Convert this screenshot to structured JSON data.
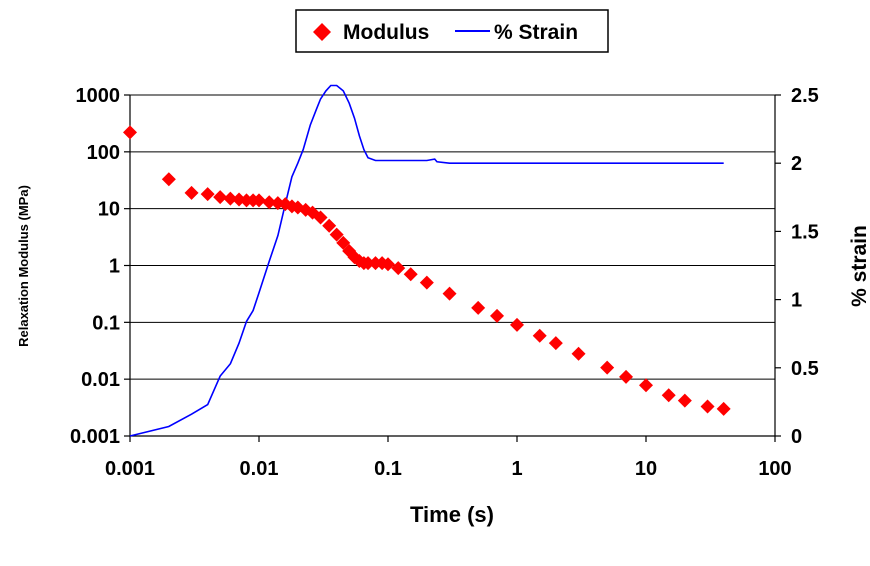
{
  "chart_data": {
    "type": "line",
    "xlabel": "Time (s)",
    "ylabel": "Relaxation Modulus (MPa)",
    "y2label": "% strain",
    "x_scale": "log",
    "xlim": [
      0.001,
      100
    ],
    "ylim": [
      0.001,
      1000
    ],
    "y_scale": "log",
    "y2lim": [
      0,
      2.5
    ],
    "x_ticks": [
      "0.001",
      "0.01",
      "0.1",
      "1",
      "10",
      "100"
    ],
    "y_ticks": [
      "0.001",
      "0.01",
      "0.1",
      "1",
      "10",
      "100",
      "1000"
    ],
    "y2_ticks": [
      "0",
      "0.5",
      "1",
      "1.5",
      "2",
      "2.5"
    ],
    "grid": "horizontal",
    "legend_position": "top-center",
    "series": [
      {
        "name": "Modulus",
        "marker": "diamond",
        "color": "#FF0000",
        "axis": "left",
        "x": [
          0.001,
          0.002,
          0.003,
          0.004,
          0.005,
          0.006,
          0.007,
          0.008,
          0.009,
          0.01,
          0.012,
          0.014,
          0.016,
          0.018,
          0.02,
          0.023,
          0.026,
          0.03,
          0.035,
          0.04,
          0.045,
          0.05,
          0.055,
          0.06,
          0.065,
          0.07,
          0.08,
          0.09,
          0.1,
          0.12,
          0.15,
          0.2,
          0.3,
          0.5,
          0.7,
          1,
          1.5,
          2,
          3,
          5,
          7,
          10,
          15,
          20,
          30,
          40
        ],
        "y": [
          220,
          33,
          19,
          18,
          16,
          15,
          14.5,
          14,
          14,
          14,
          13,
          12.5,
          12,
          11,
          10.5,
          9.5,
          8.5,
          7,
          5,
          3.5,
          2.5,
          1.8,
          1.4,
          1.2,
          1.1,
          1.1,
          1.1,
          1.1,
          1.05,
          0.9,
          0.7,
          0.5,
          0.32,
          0.18,
          0.13,
          0.09,
          0.058,
          0.043,
          0.028,
          0.016,
          0.011,
          0.0078,
          0.0052,
          0.0042,
          0.0033,
          0.003
        ]
      },
      {
        "name": "% Strain",
        "marker": "none",
        "color": "#0000FF",
        "axis": "right",
        "x": [
          0.001,
          0.002,
          0.003,
          0.004,
          0.005,
          0.006,
          0.007,
          0.008,
          0.009,
          0.01,
          0.012,
          0.014,
          0.016,
          0.018,
          0.02,
          0.022,
          0.025,
          0.028,
          0.03,
          0.033,
          0.036,
          0.04,
          0.045,
          0.05,
          0.055,
          0.06,
          0.065,
          0.07,
          0.08,
          0.1,
          0.2,
          0.23,
          0.24,
          0.3,
          1,
          5,
          10,
          20,
          40
        ],
        "y": [
          0,
          0.07,
          0.16,
          0.23,
          0.44,
          0.53,
          0.68,
          0.84,
          0.92,
          1.05,
          1.28,
          1.47,
          1.7,
          1.9,
          2.0,
          2.1,
          2.28,
          2.4,
          2.47,
          2.53,
          2.57,
          2.57,
          2.53,
          2.44,
          2.33,
          2.2,
          2.1,
          2.04,
          2.02,
          2.02,
          2.02,
          2.03,
          2.01,
          2.0,
          2.0,
          2.0,
          2.0,
          2.0,
          2.0
        ]
      }
    ]
  }
}
